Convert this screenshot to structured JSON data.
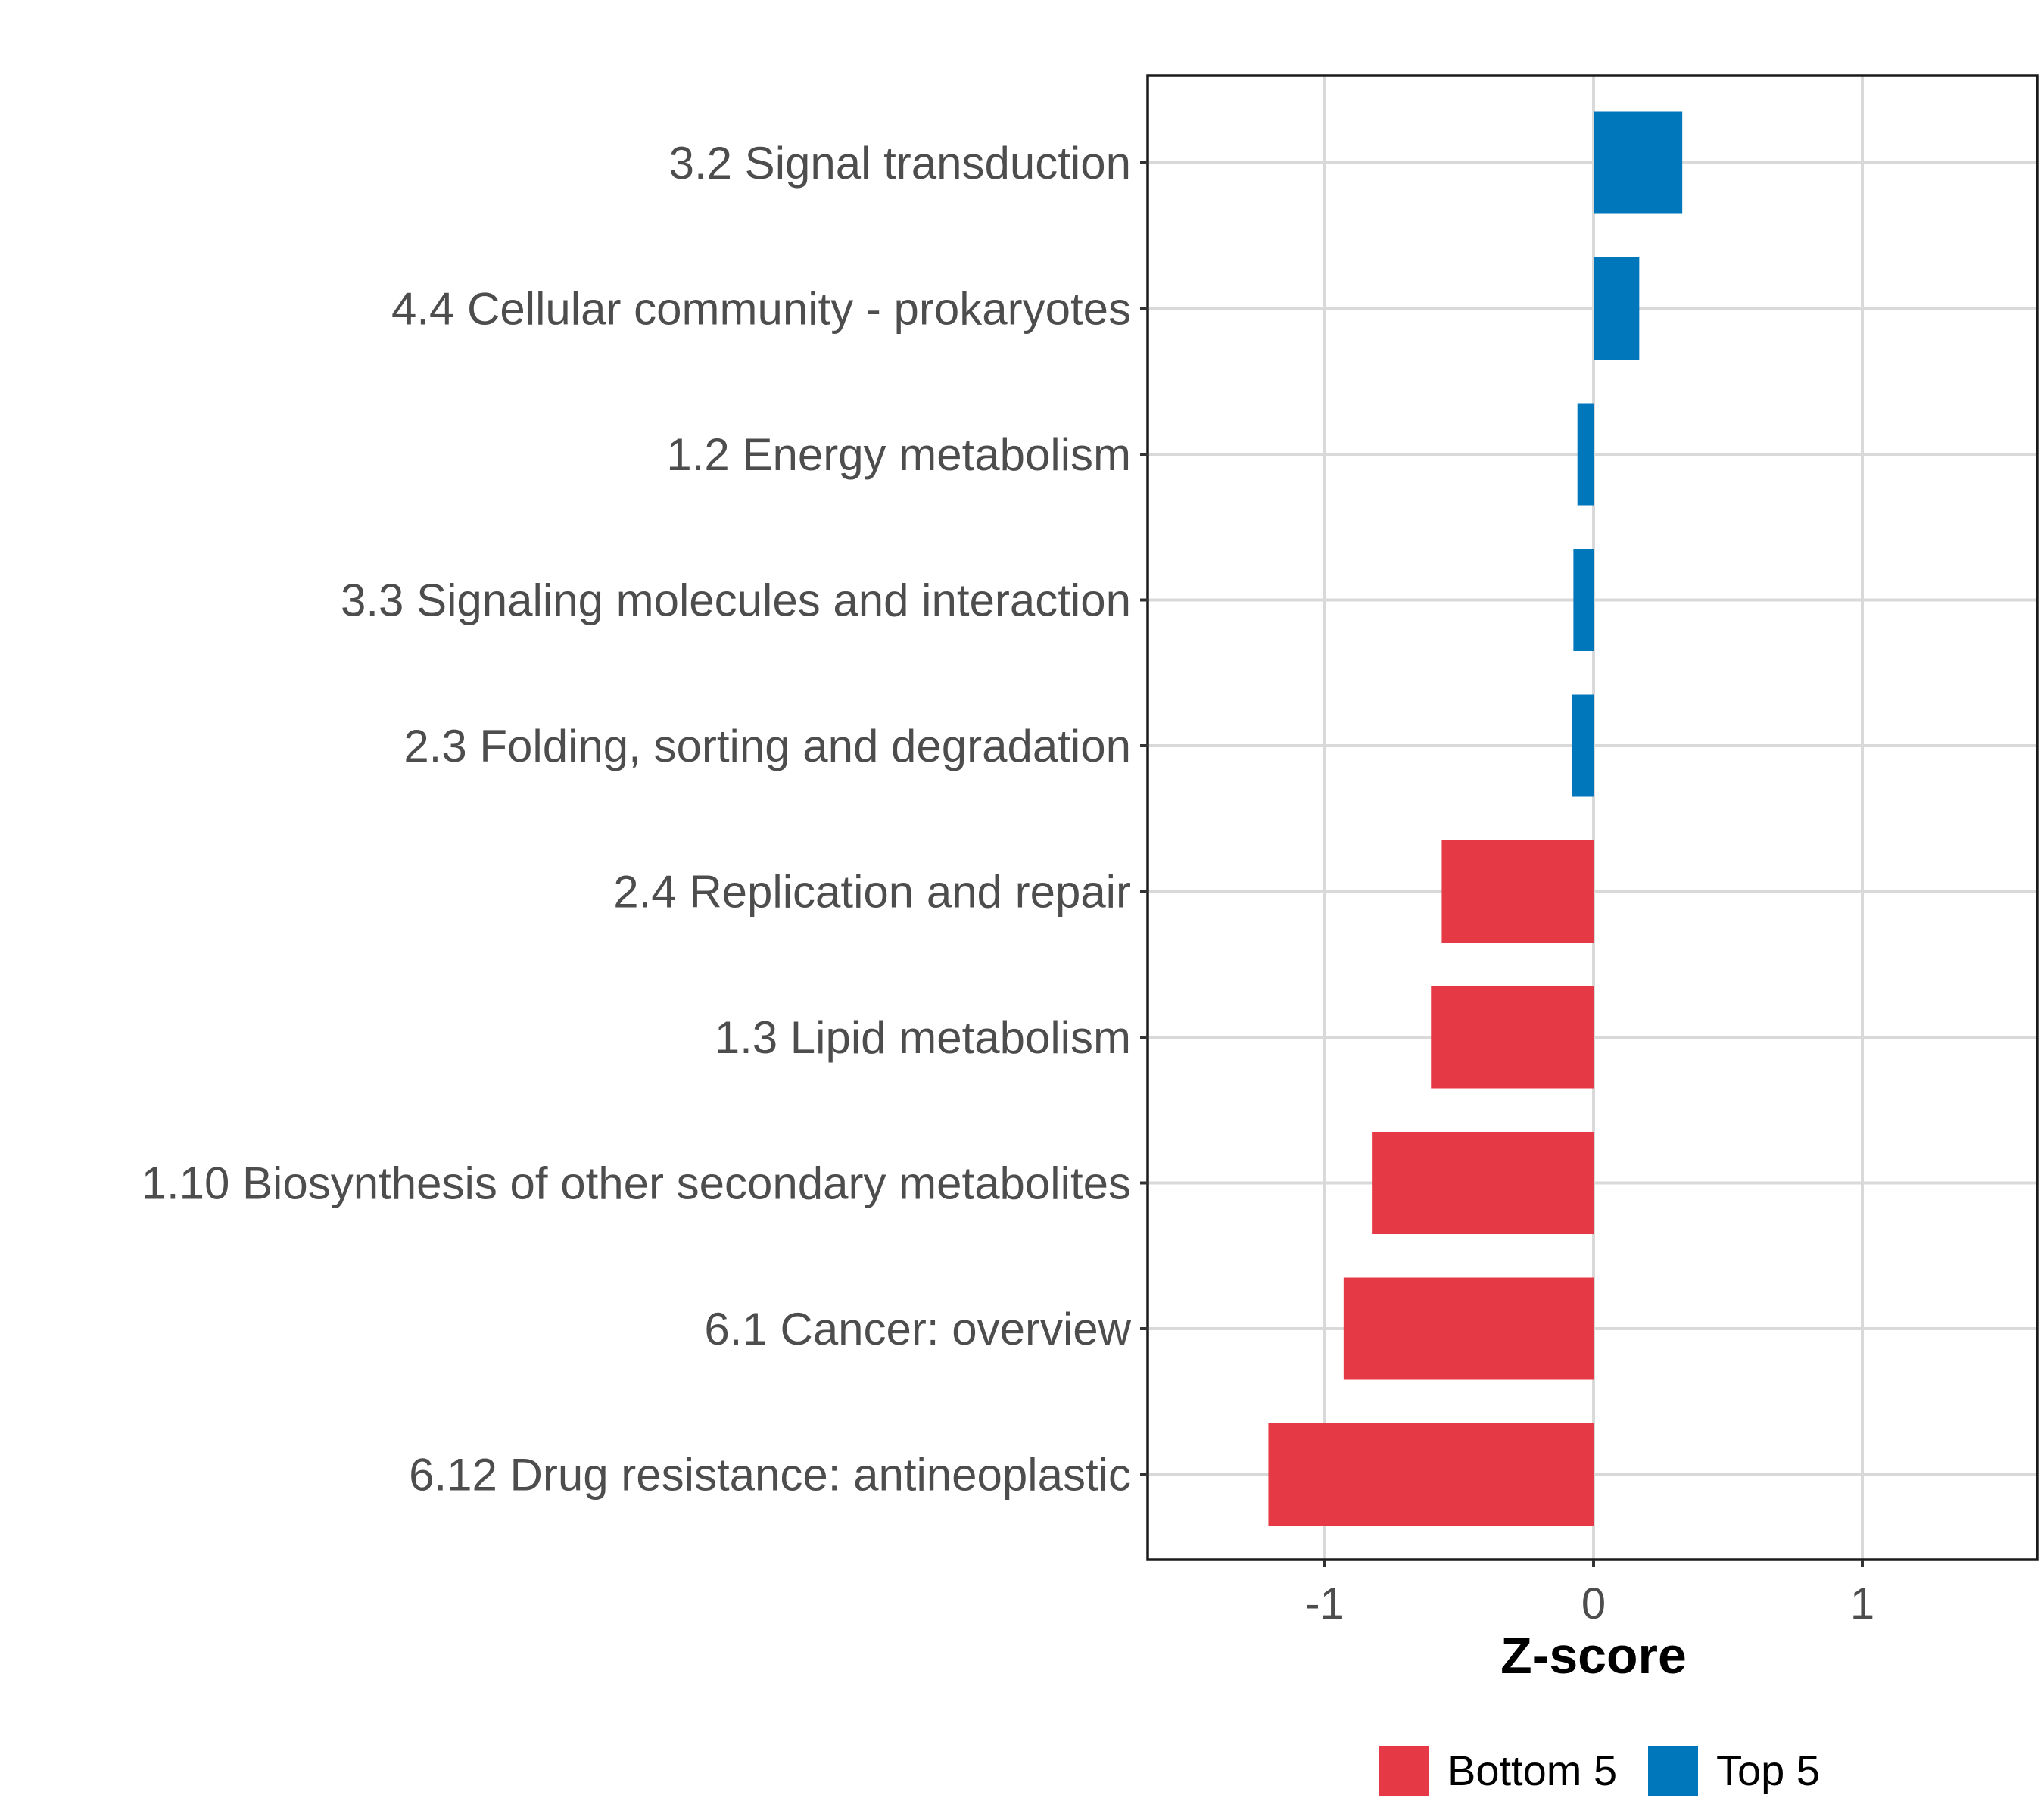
{
  "chart_data": {
    "type": "bar",
    "orientation": "horizontal",
    "xlabel": "Z-score",
    "ylabel": "",
    "xlim": [
      -1.65,
      1.65
    ],
    "xticks": [
      -1,
      0,
      1
    ],
    "xtick_labels": [
      "-1",
      "0",
      "1"
    ],
    "grid": true,
    "categories": [
      "3.2 Signal transduction",
      "4.4 Cellular community - prokaryotes",
      "1.2 Energy metabolism",
      "3.3 Signaling molecules and interaction",
      "2.3 Folding, sorting and degradation",
      "2.4 Replication and repair",
      "1.3 Lipid metabolism",
      "1.10 Biosynthesis of other secondary metabolites",
      "6.1 Cancer: overview",
      "6.12 Drug resistance: antineoplastic"
    ],
    "values": [
      0.33,
      0.17,
      -0.06,
      -0.075,
      -0.08,
      -0.565,
      -0.605,
      -0.825,
      -0.93,
      -1.21
    ],
    "groups": [
      "Top 5",
      "Top 5",
      "Top 5",
      "Top 5",
      "Top 5",
      "Bottom 5",
      "Bottom 5",
      "Bottom 5",
      "Bottom 5",
      "Bottom 5"
    ],
    "legend": {
      "placement": "bottom",
      "entries": [
        {
          "label": "Bottom 5",
          "color": "#e63946"
        },
        {
          "label": "Top 5",
          "color": "#0077bb"
        }
      ]
    }
  }
}
